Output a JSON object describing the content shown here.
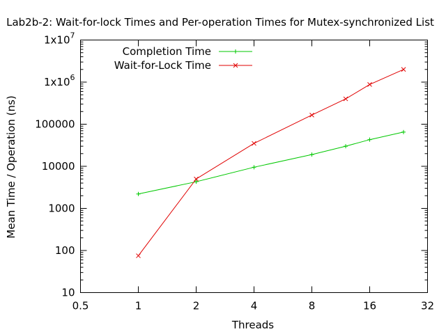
{
  "chart_data": {
    "type": "line",
    "title": "Lab2b-2: Wait-for-lock Times and Per-operation Times for Mutex-synchronized List",
    "xlabel": "Threads",
    "ylabel": "Mean Time / Operation (ns)",
    "xscale": "log2",
    "yscale": "log10",
    "xlim": [
      0.5,
      32
    ],
    "ylim": [
      10,
      10000000
    ],
    "x_ticks": [
      {
        "value": 0.5,
        "label": "0.5"
      },
      {
        "value": 1,
        "label": "1"
      },
      {
        "value": 2,
        "label": "2"
      },
      {
        "value": 4,
        "label": "4"
      },
      {
        "value": 8,
        "label": "8"
      },
      {
        "value": 16,
        "label": "16"
      },
      {
        "value": 32,
        "label": "32"
      }
    ],
    "y_ticks": [
      {
        "value": 10,
        "label": "10"
      },
      {
        "value": 100,
        "label": "100"
      },
      {
        "value": 1000,
        "label": "1000"
      },
      {
        "value": 10000,
        "label": "10000"
      },
      {
        "value": 100000,
        "label": "100000"
      },
      {
        "value": 1000000,
        "label": "1x10",
        "sup": "6"
      },
      {
        "value": 10000000,
        "label": "1x10",
        "sup": "7"
      }
    ],
    "grid": false,
    "legend_position": "top-left",
    "series": [
      {
        "name": "Completion Time",
        "color": "#00c800",
        "marker": "plus",
        "x": [
          1,
          2,
          4,
          8,
          12,
          16,
          24
        ],
        "y": [
          2200,
          4300,
          9500,
          19000,
          30000,
          43000,
          65000
        ]
      },
      {
        "name": "Wait-for-Lock Time",
        "color": "#e00000",
        "marker": "cross",
        "x": [
          1,
          2,
          4,
          8,
          12,
          16,
          24
        ],
        "y": [
          75,
          5000,
          35000,
          165000,
          400000,
          880000,
          2000000
        ]
      }
    ]
  }
}
